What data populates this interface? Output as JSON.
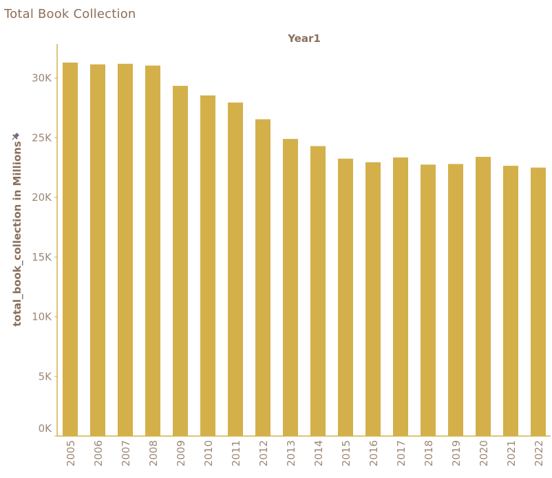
{
  "page": {
    "title": "Total Book Collection"
  },
  "chart_data": {
    "type": "bar",
    "title": "Total Book Collection",
    "header": "Year1",
    "xlabel": "",
    "ylabel": "total_book_collection in Millions",
    "ylim": [
      0,
      33000
    ],
    "yticks": [
      0,
      5000,
      10000,
      15000,
      20000,
      25000,
      30000
    ],
    "ytick_labels": [
      "0K",
      "5K",
      "10K",
      "15K",
      "20K",
      "25K",
      "30K"
    ],
    "categories": [
      "2005",
      "2006",
      "2007",
      "2008",
      "2009",
      "2010",
      "2011",
      "2012",
      "2013",
      "2014",
      "2015",
      "2016",
      "2017",
      "2018",
      "2019",
      "2020",
      "2021",
      "2022"
    ],
    "values": [
      31300,
      31150,
      31200,
      31050,
      29350,
      28550,
      27950,
      26550,
      24900,
      24300,
      23250,
      22950,
      23350,
      22750,
      22800,
      23400,
      22650,
      22500
    ],
    "grid": false,
    "legend": "none",
    "bar_color": "#d4b04a",
    "axis_color": "#d4b04a",
    "text_color": "#8b6f5a",
    "tick_color": "#9b8777"
  }
}
